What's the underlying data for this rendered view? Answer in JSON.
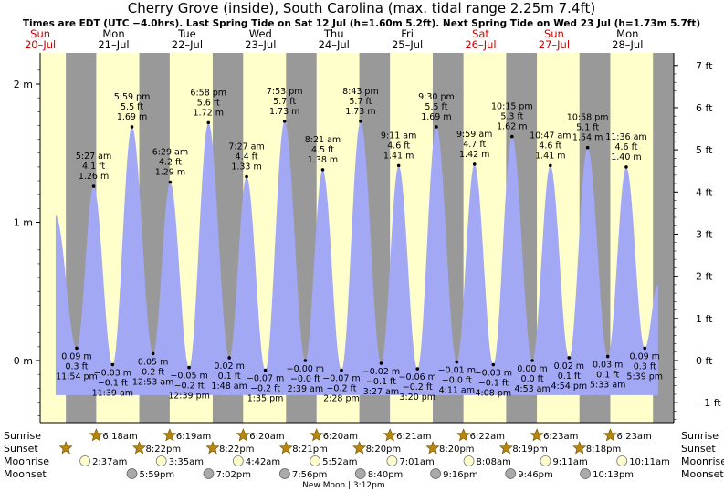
{
  "chart_data": {
    "type": "area",
    "title": "Cherry Grove (inside), South Carolina (max. tidal range 2.25m 7.4ft)",
    "subtitle": "Times are EDT (UTC −4.0hrs). Last Spring Tide on Sat 12 Jul (h=1.60m 5.2ft). Next Spring Tide on Wed 23 Jul (h=1.73m 5.7ft)",
    "ylim": [
      -0.45,
      2.2
    ],
    "y_ticks_left": [
      "0 m",
      "1 m",
      "2 m"
    ],
    "y_ticks_right": [
      "−1 ft",
      "0 ft",
      "1 ft",
      "2 ft",
      "3 ft",
      "4 ft",
      "5 ft",
      "6 ft",
      "7 ft"
    ],
    "days": [
      {
        "dow": "Sun",
        "date": "20–Jul",
        "weekend": true
      },
      {
        "dow": "Mon",
        "date": "21–Jul",
        "weekend": false
      },
      {
        "dow": "Tue",
        "date": "22–Jul",
        "weekend": false
      },
      {
        "dow": "Wed",
        "date": "23–Jul",
        "weekend": false
      },
      {
        "dow": "Thu",
        "date": "24–Jul",
        "weekend": false
      },
      {
        "dow": "Fri",
        "date": "25–Jul",
        "weekend": false
      },
      {
        "dow": "Sat",
        "date": "26–Jul",
        "weekend": true
      },
      {
        "dow": "Sun",
        "date": "27–Jul",
        "weekend": true
      },
      {
        "dow": "Mon",
        "date": "28–Jul",
        "weekend": false
      }
    ],
    "tides": [
      {
        "day": 0,
        "hour": 23.9,
        "m": 0.09,
        "time": "11:54 pm",
        "ft": "0.3 ft",
        "mlabel": "0.09 m",
        "type": "low"
      },
      {
        "day": 1,
        "hour": 5.45,
        "m": 1.26,
        "time": "5:27 am",
        "ft": "4.1 ft",
        "mlabel": "1.26 m",
        "type": "high"
      },
      {
        "day": 1,
        "hour": 11.65,
        "m": -0.03,
        "time": "11:39 am",
        "ft": "−0.1 ft",
        "mlabel": "−0.03 m",
        "type": "low"
      },
      {
        "day": 1,
        "hour": 17.98,
        "m": 1.69,
        "time": "5:59 pm",
        "ft": "5.5 ft",
        "mlabel": "1.69 m",
        "type": "high"
      },
      {
        "day": 2,
        "hour": 0.88,
        "m": 0.05,
        "time": "12:53 am",
        "ft": "0.2 ft",
        "mlabel": "0.05 m",
        "type": "low"
      },
      {
        "day": 2,
        "hour": 6.48,
        "m": 1.29,
        "time": "6:29 am",
        "ft": "4.2 ft",
        "mlabel": "1.29 m",
        "type": "high"
      },
      {
        "day": 2,
        "hour": 12.65,
        "m": -0.05,
        "time": "12:39 pm",
        "ft": "−0.2 ft",
        "mlabel": "−0.05 m",
        "type": "low"
      },
      {
        "day": 2,
        "hour": 18.97,
        "m": 1.72,
        "time": "6:58 pm",
        "ft": "5.6 ft",
        "mlabel": "1.72 m",
        "type": "high"
      },
      {
        "day": 3,
        "hour": 1.8,
        "m": 0.02,
        "time": "1:48 am",
        "ft": "0.1 ft",
        "mlabel": "0.02 m",
        "type": "low"
      },
      {
        "day": 3,
        "hour": 7.45,
        "m": 1.33,
        "time": "7:27 am",
        "ft": "4.4 ft",
        "mlabel": "1.33 m",
        "type": "high"
      },
      {
        "day": 3,
        "hour": 13.58,
        "m": -0.07,
        "time": "1:35 pm",
        "ft": "−0.2 ft",
        "mlabel": "−0.07 m",
        "type": "low"
      },
      {
        "day": 3,
        "hour": 19.88,
        "m": 1.73,
        "time": "7:53 pm",
        "ft": "5.7 ft",
        "mlabel": "1.73 m",
        "type": "high"
      },
      {
        "day": 4,
        "hour": 2.65,
        "m": -0.0,
        "time": "2:39 am",
        "ft": "−0.0 ft",
        "mlabel": "−0.00 m",
        "type": "low"
      },
      {
        "day": 4,
        "hour": 8.35,
        "m": 1.38,
        "time": "8:21 am",
        "ft": "4.5 ft",
        "mlabel": "1.38 m",
        "type": "high"
      },
      {
        "day": 4,
        "hour": 14.47,
        "m": -0.07,
        "time": "2:28 pm",
        "ft": "−0.2 ft",
        "mlabel": "−0.07 m",
        "type": "low"
      },
      {
        "day": 4,
        "hour": 20.72,
        "m": 1.73,
        "time": "8:43 pm",
        "ft": "5.7 ft",
        "mlabel": "1.73 m",
        "type": "high"
      },
      {
        "day": 5,
        "hour": 3.45,
        "m": -0.02,
        "time": "3:27 am",
        "ft": "−0.1 ft",
        "mlabel": "−0.02 m",
        "type": "low"
      },
      {
        "day": 5,
        "hour": 9.18,
        "m": 1.41,
        "time": "9:11 am",
        "ft": "4.6 ft",
        "mlabel": "1.41 m",
        "type": "high"
      },
      {
        "day": 5,
        "hour": 15.33,
        "m": -0.06,
        "time": "3:20 pm",
        "ft": "−0.2 ft",
        "mlabel": "−0.06 m",
        "type": "low"
      },
      {
        "day": 5,
        "hour": 21.5,
        "m": 1.69,
        "time": "9:30 pm",
        "ft": "5.5 ft",
        "mlabel": "1.69 m",
        "type": "high"
      },
      {
        "day": 6,
        "hour": 4.18,
        "m": -0.01,
        "time": "4:11 am",
        "ft": "−0.0 ft",
        "mlabel": "−0.01 m",
        "type": "low"
      },
      {
        "day": 6,
        "hour": 9.98,
        "m": 1.42,
        "time": "9:59 am",
        "ft": "4.7 ft",
        "mlabel": "1.42 m",
        "type": "high"
      },
      {
        "day": 6,
        "hour": 16.13,
        "m": -0.03,
        "time": "4:08 pm",
        "ft": "−0.1 ft",
        "mlabel": "−0.03 m",
        "type": "low"
      },
      {
        "day": 6,
        "hour": 22.25,
        "m": 1.62,
        "time": "10:15 pm",
        "ft": "5.3 ft",
        "mlabel": "1.62 m",
        "type": "high"
      },
      {
        "day": 7,
        "hour": 4.88,
        "m": 0.0,
        "time": "4:53 am",
        "ft": "0.0 ft",
        "mlabel": "0.00 m",
        "type": "low"
      },
      {
        "day": 7,
        "hour": 10.78,
        "m": 1.41,
        "time": "10:47 am",
        "ft": "4.6 ft",
        "mlabel": "1.41 m",
        "type": "high"
      },
      {
        "day": 7,
        "hour": 16.9,
        "m": 0.02,
        "time": "4:54 pm",
        "ft": "0.1 ft",
        "mlabel": "0.02 m",
        "type": "low"
      },
      {
        "day": 7,
        "hour": 22.97,
        "m": 1.54,
        "time": "10:58 pm",
        "ft": "5.1 ft",
        "mlabel": "1.54 m",
        "type": "high"
      },
      {
        "day": 8,
        "hour": 5.55,
        "m": 0.03,
        "time": "5:33 am",
        "ft": "0.1 ft",
        "mlabel": "0.03 m",
        "type": "low"
      },
      {
        "day": 8,
        "hour": 11.6,
        "m": 1.4,
        "time": "11:36 am",
        "ft": "4.6 ft",
        "mlabel": "1.40 m",
        "type": "high"
      },
      {
        "day": 8,
        "hour": 17.65,
        "m": 0.09,
        "time": "5:39 pm",
        "ft": "0.3 ft",
        "mlabel": "0.09 m",
        "type": "low"
      }
    ],
    "curve_start": {
      "day": 0,
      "hour": 17.0,
      "m": 1.05
    },
    "curve_end": {
      "day": 8,
      "hour": 22.0,
      "m": 0.55
    },
    "sunrise": [
      {
        "day": 1,
        "hour": 6.3,
        "label": "6:18am"
      },
      {
        "day": 2,
        "hour": 6.32,
        "label": "6:19am"
      },
      {
        "day": 3,
        "hour": 6.33,
        "label": "6:20am"
      },
      {
        "day": 4,
        "hour": 6.33,
        "label": "6:20am"
      },
      {
        "day": 5,
        "hour": 6.35,
        "label": "6:21am"
      },
      {
        "day": 6,
        "hour": 6.37,
        "label": "6:22am"
      },
      {
        "day": 7,
        "hour": 6.38,
        "label": "6:23am"
      },
      {
        "day": 8,
        "hour": 6.38,
        "label": "6:23am"
      }
    ],
    "sunset": [
      {
        "day": 0,
        "hour": 20.37,
        "label": ""
      },
      {
        "day": 1,
        "hour": 20.37,
        "label": "8:22pm"
      },
      {
        "day": 2,
        "hour": 20.37,
        "label": "8:22pm"
      },
      {
        "day": 3,
        "hour": 20.35,
        "label": "8:21pm"
      },
      {
        "day": 4,
        "hour": 20.33,
        "label": "8:20pm"
      },
      {
        "day": 5,
        "hour": 20.33,
        "label": "8:20pm"
      },
      {
        "day": 6,
        "hour": 20.32,
        "label": "8:19pm"
      },
      {
        "day": 7,
        "hour": 20.3,
        "label": "8:18pm"
      }
    ],
    "moonrise": [
      {
        "day": 1,
        "hour": 2.62,
        "label": "2:37am"
      },
      {
        "day": 2,
        "hour": 3.58,
        "label": "3:35am"
      },
      {
        "day": 3,
        "hour": 4.7,
        "label": "4:42am"
      },
      {
        "day": 4,
        "hour": 5.87,
        "label": "5:52am"
      },
      {
        "day": 5,
        "hour": 7.02,
        "label": "7:01am"
      },
      {
        "day": 6,
        "hour": 8.13,
        "label": "8:08am"
      },
      {
        "day": 7,
        "hour": 9.18,
        "label": "9:11am"
      },
      {
        "day": 8,
        "hour": 10.18,
        "label": "10:11am"
      }
    ],
    "moonset": [
      {
        "day": 1,
        "hour": 17.98,
        "label": "5:59pm"
      },
      {
        "day": 2,
        "hour": 19.03,
        "label": "7:02pm"
      },
      {
        "day": 3,
        "hour": 19.93,
        "label": "7:56pm"
      },
      {
        "day": 4,
        "hour": 20.67,
        "label": "8:40pm"
      },
      {
        "day": 5,
        "hour": 21.27,
        "label": "9:16pm"
      },
      {
        "day": 6,
        "hour": 21.77,
        "label": "9:46pm"
      },
      {
        "day": 7,
        "hour": 22.22,
        "label": "10:13pm"
      }
    ],
    "row_labels": {
      "sunrise": "Sunrise",
      "sunset": "Sunset",
      "moonrise": "Moonrise",
      "moonset": "Moonset"
    },
    "new_moon": {
      "day": 4,
      "hour": 15.2,
      "label": "New Moon | 3:12pm"
    },
    "colors": {
      "night": "#999999",
      "day": "#ffffcc",
      "water": "#a3a8f5",
      "weekend_header": "#cc0000",
      "weekday_header": "#000000",
      "grid_line": "#000000",
      "sun": "#b8860b",
      "moon_rise": "#ffffcc",
      "moon_set": "#aaaaaa"
    }
  }
}
